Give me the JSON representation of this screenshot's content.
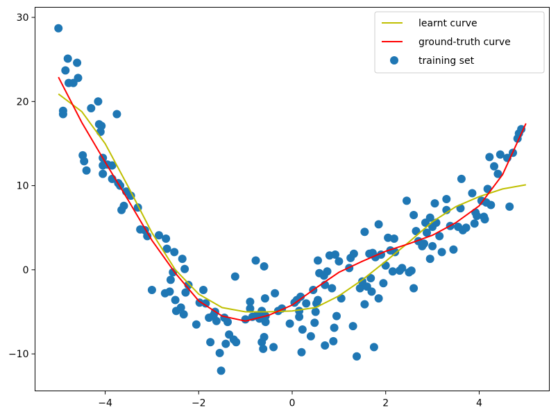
{
  "chart_data": {
    "type": "scatter",
    "title": "",
    "xlabel": "",
    "ylabel": "",
    "xlim": [
      -5.5,
      5.5
    ],
    "ylim": [
      -14.4,
      31.2
    ],
    "xticks": [
      -4,
      -2,
      0,
      2,
      4
    ],
    "yticks": [
      -10,
      0,
      10,
      20,
      30
    ],
    "xtick_labels": [
      "−4",
      "−2",
      "0",
      "2",
      "4"
    ],
    "ytick_labels": [
      "−10",
      "0",
      "10",
      "20",
      "30"
    ],
    "grid": false,
    "legend_position": "top-right",
    "series": [
      {
        "name": "learnt curve",
        "kind": "line",
        "color": "#bfbf00",
        "x": [
          -5.0,
          -4.5,
          -4.0,
          -3.5,
          -3.0,
          -2.5,
          -2.0,
          -1.5,
          -1.0,
          -0.5,
          0.0,
          0.5,
          1.0,
          1.5,
          2.0,
          2.5,
          3.0,
          3.5,
          4.0,
          4.5,
          5.0
        ],
        "y": [
          20.9,
          18.8,
          15.0,
          9.8,
          4.4,
          0.0,
          -2.9,
          -4.5,
          -5.0,
          -5.0,
          -4.9,
          -4.5,
          -3.1,
          -1.2,
          1.0,
          3.3,
          5.7,
          7.5,
          8.7,
          9.6,
          10.1
        ]
      },
      {
        "name": "ground-truth curve",
        "kind": "line",
        "color": "#ff0000",
        "x": [
          -5.0,
          -4.5,
          -4.0,
          -3.5,
          -3.0,
          -2.5,
          -2.0,
          -1.5,
          -1.0,
          -0.5,
          0.0,
          0.5,
          1.0,
          1.5,
          2.0,
          2.5,
          3.0,
          3.5,
          4.0,
          4.5,
          5.0
        ],
        "y": [
          22.9,
          17.5,
          12.8,
          8.2,
          3.5,
          -0.4,
          -3.7,
          -5.5,
          -6.1,
          -5.4,
          -4.2,
          -2.2,
          -0.3,
          1.0,
          2.2,
          3.1,
          4.1,
          5.6,
          7.6,
          11.3,
          17.4
        ]
      },
      {
        "name": "training set",
        "kind": "scatter",
        "color": "#1f77b4",
        "points": [
          [
            -5.0,
            28.7
          ],
          [
            -4.9,
            18.9
          ],
          [
            -4.9,
            18.5
          ],
          [
            -4.85,
            23.7
          ],
          [
            -4.8,
            25.1
          ],
          [
            -4.78,
            22.2
          ],
          [
            -4.68,
            22.2
          ],
          [
            -4.6,
            24.6
          ],
          [
            -4.58,
            22.8
          ],
          [
            -4.48,
            13.6
          ],
          [
            -4.45,
            12.9
          ],
          [
            -4.4,
            11.8
          ],
          [
            -4.3,
            19.2
          ],
          [
            -4.15,
            20.0
          ],
          [
            -4.13,
            17.3
          ],
          [
            -4.1,
            16.4
          ],
          [
            -4.08,
            17.1
          ],
          [
            -4.05,
            13.3
          ],
          [
            -4.05,
            12.4
          ],
          [
            -4.05,
            11.4
          ],
          [
            -3.95,
            12.5
          ],
          [
            -3.85,
            12.4
          ],
          [
            -3.85,
            10.8
          ],
          [
            -3.75,
            18.5
          ],
          [
            -3.72,
            10.3
          ],
          [
            -3.68,
            10.0
          ],
          [
            -3.65,
            7.1
          ],
          [
            -3.6,
            7.6
          ],
          [
            -3.55,
            9.3
          ],
          [
            -3.45,
            8.8
          ],
          [
            -3.3,
            7.4
          ],
          [
            -3.25,
            4.8
          ],
          [
            -3.15,
            4.7
          ],
          [
            -3.1,
            4.0
          ],
          [
            -3.0,
            -2.4
          ],
          [
            -2.85,
            4.1
          ],
          [
            -2.72,
            -2.8
          ],
          [
            -2.7,
            3.7
          ],
          [
            -2.68,
            2.5
          ],
          [
            -2.62,
            -2.6
          ],
          [
            -2.6,
            -1.2
          ],
          [
            -2.55,
            -0.3
          ],
          [
            -2.52,
            2.1
          ],
          [
            -2.5,
            -3.6
          ],
          [
            -2.48,
            -4.9
          ],
          [
            -2.38,
            -4.5
          ],
          [
            -2.35,
            1.3
          ],
          [
            -2.32,
            -5.3
          ],
          [
            -2.3,
            0.1
          ],
          [
            -2.28,
            -2.7
          ],
          [
            -2.22,
            -1.8
          ],
          [
            -2.05,
            -6.5
          ],
          [
            -1.98,
            -3.9
          ],
          [
            -1.9,
            -2.4
          ],
          [
            -1.85,
            -4.0
          ],
          [
            -1.78,
            -5.7
          ],
          [
            -1.75,
            -8.6
          ],
          [
            -1.68,
            -5.4
          ],
          [
            -1.65,
            -5.0
          ],
          [
            -1.62,
            -6.1
          ],
          [
            -1.55,
            -9.9
          ],
          [
            -1.52,
            -12.0
          ],
          [
            -1.45,
            -5.7
          ],
          [
            -1.42,
            -8.8
          ],
          [
            -1.38,
            -6.2
          ],
          [
            -1.35,
            -7.7
          ],
          [
            -1.25,
            -8.3
          ],
          [
            -1.2,
            -8.6
          ],
          [
            -1.22,
            -0.8
          ],
          [
            -1.0,
            -5.9
          ],
          [
            -0.9,
            -3.8
          ],
          [
            -0.9,
            -4.6
          ],
          [
            -0.85,
            -5.6
          ],
          [
            -0.78,
            1.1
          ],
          [
            -0.75,
            -5.4
          ],
          [
            -0.7,
            -5.8
          ],
          [
            -0.65,
            -4.9
          ],
          [
            -0.65,
            -8.6
          ],
          [
            -0.62,
            -9.4
          ],
          [
            -0.6,
            0.4
          ],
          [
            -0.6,
            -8.0
          ],
          [
            -0.58,
            -3.4
          ],
          [
            -0.57,
            -5.5
          ],
          [
            -0.57,
            -6.2
          ],
          [
            -0.4,
            -9.2
          ],
          [
            -0.37,
            -2.8
          ],
          [
            -0.3,
            -4.9
          ],
          [
            -0.22,
            -4.6
          ],
          [
            -0.05,
            -6.4
          ],
          [
            0.05,
            -3.9
          ],
          [
            0.1,
            -3.6
          ],
          [
            0.15,
            -4.9
          ],
          [
            0.15,
            -5.6
          ],
          [
            0.18,
            -3.2
          ],
          [
            0.2,
            -9.8
          ],
          [
            0.22,
            -7.1
          ],
          [
            0.3,
            -4.0
          ],
          [
            0.4,
            -7.9
          ],
          [
            0.45,
            -2.4
          ],
          [
            0.48,
            -6.3
          ],
          [
            0.5,
            -5.0
          ],
          [
            0.52,
            -4.0
          ],
          [
            0.55,
            -3.6
          ],
          [
            0.55,
            1.1
          ],
          [
            0.58,
            -0.4
          ],
          [
            0.68,
            -0.7
          ],
          [
            0.7,
            -9.0
          ],
          [
            0.7,
            -1.8
          ],
          [
            0.75,
            -0.2
          ],
          [
            0.8,
            1.7
          ],
          [
            0.85,
            -2.2
          ],
          [
            0.88,
            -8.5
          ],
          [
            0.9,
            -6.9
          ],
          [
            0.92,
            1.8
          ],
          [
            0.95,
            -5.5
          ],
          [
            1.0,
            1.0
          ],
          [
            1.05,
            -3.4
          ],
          [
            1.22,
            0.2
          ],
          [
            1.25,
            1.4
          ],
          [
            1.3,
            -6.7
          ],
          [
            1.32,
            1.9
          ],
          [
            1.38,
            -10.3
          ],
          [
            1.45,
            -2.2
          ],
          [
            1.5,
            -1.4
          ],
          [
            1.55,
            4.5
          ],
          [
            1.55,
            -4.1
          ],
          [
            1.6,
            -2.0
          ],
          [
            1.65,
            1.9
          ],
          [
            1.68,
            -1.0
          ],
          [
            1.7,
            -2.6
          ],
          [
            1.72,
            2.0
          ],
          [
            1.75,
            -9.2
          ],
          [
            1.78,
            1.5
          ],
          [
            1.85,
            5.4
          ],
          [
            1.85,
            -3.4
          ],
          [
            1.9,
            1.8
          ],
          [
            1.95,
            -1.6
          ],
          [
            2.0,
            0.5
          ],
          [
            2.05,
            3.8
          ],
          [
            2.1,
            2.3
          ],
          [
            2.15,
            -0.2
          ],
          [
            2.18,
            3.7
          ],
          [
            2.2,
            2.1
          ],
          [
            2.3,
            -0.1
          ],
          [
            2.35,
            0.2
          ],
          [
            2.45,
            8.2
          ],
          [
            2.5,
            -0.3
          ],
          [
            2.55,
            -0.1
          ],
          [
            2.6,
            -2.2
          ],
          [
            2.6,
            6.5
          ],
          [
            2.65,
            4.6
          ],
          [
            2.7,
            3.4
          ],
          [
            2.78,
            2.8
          ],
          [
            2.82,
            3.1
          ],
          [
            2.85,
            5.6
          ],
          [
            2.88,
            4.4
          ],
          [
            2.95,
            1.3
          ],
          [
            2.95,
            6.2
          ],
          [
            3.0,
            5.1
          ],
          [
            3.0,
            2.8
          ],
          [
            3.05,
            7.9
          ],
          [
            3.08,
            5.6
          ],
          [
            3.15,
            4.0
          ],
          [
            3.2,
            2.1
          ],
          [
            3.3,
            7.1
          ],
          [
            3.3,
            8.4
          ],
          [
            3.38,
            5.2
          ],
          [
            3.45,
            2.4
          ],
          [
            3.55,
            5.1
          ],
          [
            3.6,
            7.3
          ],
          [
            3.62,
            10.8
          ],
          [
            3.65,
            4.7
          ],
          [
            3.72,
            5.0
          ],
          [
            3.85,
            9.1
          ],
          [
            3.9,
            5.5
          ],
          [
            3.92,
            6.8
          ],
          [
            3.95,
            6.4
          ],
          [
            4.05,
            8.2
          ],
          [
            4.1,
            6.3
          ],
          [
            4.12,
            6.0
          ],
          [
            4.15,
            8.0
          ],
          [
            4.18,
            9.6
          ],
          [
            4.22,
            13.4
          ],
          [
            4.25,
            7.7
          ],
          [
            4.32,
            12.3
          ],
          [
            4.4,
            11.4
          ],
          [
            4.45,
            13.7
          ],
          [
            4.6,
            13.3
          ],
          [
            4.65,
            7.5
          ],
          [
            4.72,
            13.9
          ],
          [
            4.82,
            15.6
          ],
          [
            4.85,
            16.2
          ],
          [
            4.9,
            16.7
          ]
        ]
      }
    ]
  }
}
